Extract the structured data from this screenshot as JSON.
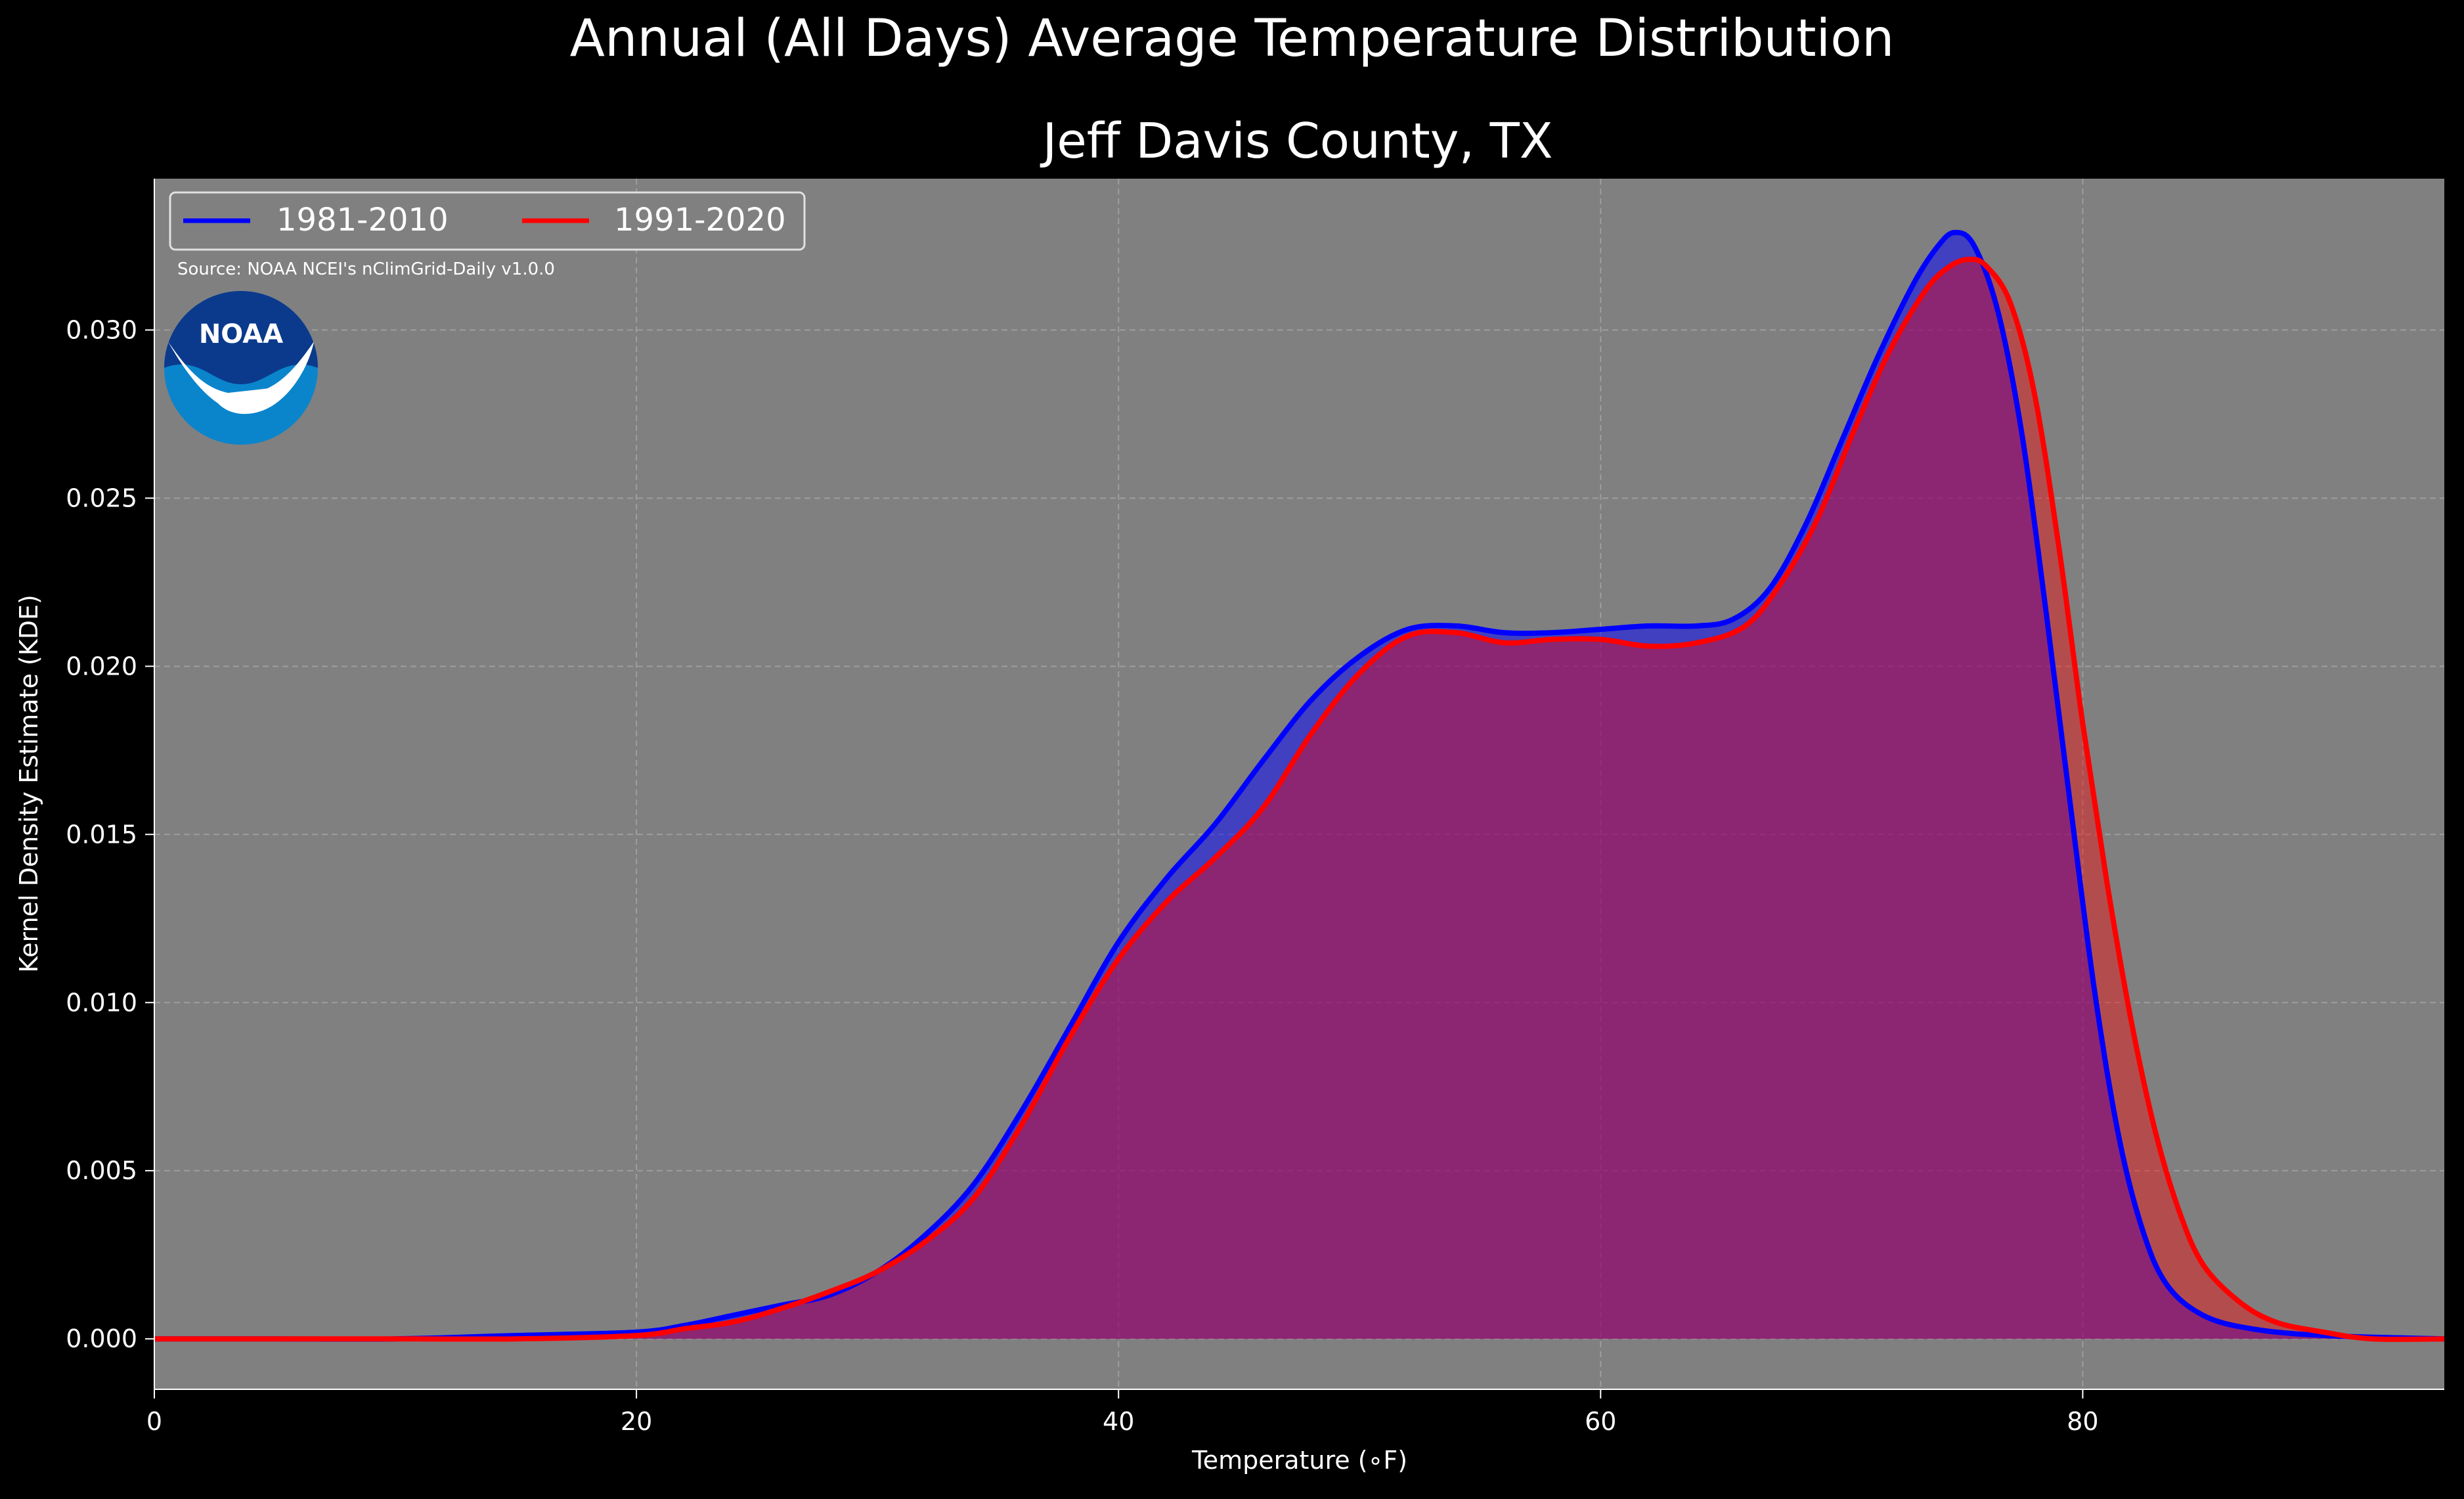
{
  "chart_data": {
    "type": "area",
    "title": "Annual (All Days) Average Temperature Distribution",
    "subtitle": "Jeff Davis County, TX",
    "xlabel": "Temperature ($^\\circ$F)",
    "xlabel_display": "Temperature (∘F)",
    "ylabel": "Kernel Density Estimate (KDE)",
    "xlim": [
      0,
      95
    ],
    "ylim": [
      -0.0015,
      0.0345
    ],
    "xticks": [
      0,
      20,
      40,
      60,
      80
    ],
    "xtick_labels": [
      "0",
      "20",
      "40",
      "60",
      "80"
    ],
    "yticks": [
      0.0,
      0.005,
      0.01,
      0.015,
      0.02,
      0.025,
      0.03
    ],
    "ytick_labels": [
      "0.000",
      "0.005",
      "0.010",
      "0.015",
      "0.020",
      "0.025",
      "0.030"
    ],
    "grid": true,
    "legend_position": "top-left",
    "source_note": "Source: NOAA NCEI's nClimGrid-Daily v1.0.0",
    "logo_text": "NOAA",
    "colors": {
      "background": "#000000",
      "plot_background": "#808080",
      "grid": "#b3b3b3",
      "text": "#ffffff"
    },
    "series": [
      {
        "name": "1981-2010",
        "line_color": "#0000ff",
        "fill_color": "#0000ff",
        "fill_opacity": 0.5,
        "points": [
          [
            0,
            0.0
          ],
          [
            5,
            0.0
          ],
          [
            10,
            0.0
          ],
          [
            15,
            0.0001
          ],
          [
            20,
            0.0002
          ],
          [
            22,
            0.0004
          ],
          [
            24,
            0.0007
          ],
          [
            26,
            0.001
          ],
          [
            28,
            0.0013
          ],
          [
            30,
            0.002
          ],
          [
            32,
            0.0031
          ],
          [
            34,
            0.0046
          ],
          [
            36,
            0.0068
          ],
          [
            38,
            0.0093
          ],
          [
            40,
            0.0118
          ],
          [
            42,
            0.0137
          ],
          [
            44,
            0.0153
          ],
          [
            46,
            0.0172
          ],
          [
            48,
            0.019
          ],
          [
            50,
            0.0203
          ],
          [
            52,
            0.0211
          ],
          [
            54,
            0.0212
          ],
          [
            56,
            0.021
          ],
          [
            58,
            0.021
          ],
          [
            60,
            0.0211
          ],
          [
            62,
            0.0212
          ],
          [
            64,
            0.0212
          ],
          [
            65.5,
            0.0214
          ],
          [
            67,
            0.0223
          ],
          [
            68.5,
            0.0242
          ],
          [
            70,
            0.0267
          ],
          [
            71.5,
            0.0292
          ],
          [
            73,
            0.0314
          ],
          [
            74,
            0.0325
          ],
          [
            74.7,
            0.0329
          ],
          [
            75.5,
            0.0325
          ],
          [
            76.5,
            0.0305
          ],
          [
            77.5,
            0.0268
          ],
          [
            78.5,
            0.0215
          ],
          [
            79.5,
            0.0158
          ],
          [
            80.5,
            0.0103
          ],
          [
            81.5,
            0.006
          ],
          [
            82.5,
            0.0032
          ],
          [
            83.5,
            0.0016
          ],
          [
            85,
            0.0007
          ],
          [
            87,
            0.0003
          ],
          [
            90,
            0.0001
          ],
          [
            95,
            0.0
          ]
        ]
      },
      {
        "name": "1991-2020",
        "line_color": "#ff0000",
        "fill_color": "#ff0000",
        "fill_opacity": 0.4,
        "points": [
          [
            0,
            0.0
          ],
          [
            5,
            0.0
          ],
          [
            10,
            0.0
          ],
          [
            15,
            0.0
          ],
          [
            20,
            0.0001
          ],
          [
            22,
            0.0003
          ],
          [
            24,
            0.0005
          ],
          [
            26,
            0.0009
          ],
          [
            28,
            0.0014
          ],
          [
            30,
            0.002
          ],
          [
            32,
            0.0029
          ],
          [
            34,
            0.0042
          ],
          [
            36,
            0.0064
          ],
          [
            38,
            0.009
          ],
          [
            40,
            0.0113
          ],
          [
            42,
            0.013
          ],
          [
            44,
            0.0143
          ],
          [
            46,
            0.0158
          ],
          [
            48,
            0.018
          ],
          [
            50,
            0.0198
          ],
          [
            52,
            0.0209
          ],
          [
            54,
            0.021
          ],
          [
            56,
            0.0207
          ],
          [
            58,
            0.0208
          ],
          [
            60,
            0.0208
          ],
          [
            62,
            0.0206
          ],
          [
            64,
            0.0207
          ],
          [
            66,
            0.0212
          ],
          [
            67.5,
            0.0225
          ],
          [
            69,
            0.0244
          ],
          [
            70.5,
            0.027
          ],
          [
            72,
            0.0294
          ],
          [
            73.5,
            0.0312
          ],
          [
            74.5,
            0.0319
          ],
          [
            75.3,
            0.0321
          ],
          [
            76,
            0.0319
          ],
          [
            77,
            0.0308
          ],
          [
            78,
            0.0281
          ],
          [
            79,
            0.0236
          ],
          [
            80,
            0.0183
          ],
          [
            81,
            0.0136
          ],
          [
            82,
            0.0095
          ],
          [
            83,
            0.0062
          ],
          [
            84,
            0.0038
          ],
          [
            85,
            0.0022
          ],
          [
            86.5,
            0.0011
          ],
          [
            88,
            0.0005
          ],
          [
            90,
            0.0002
          ],
          [
            92,
            0.0
          ],
          [
            95,
            0.0
          ]
        ]
      }
    ]
  }
}
